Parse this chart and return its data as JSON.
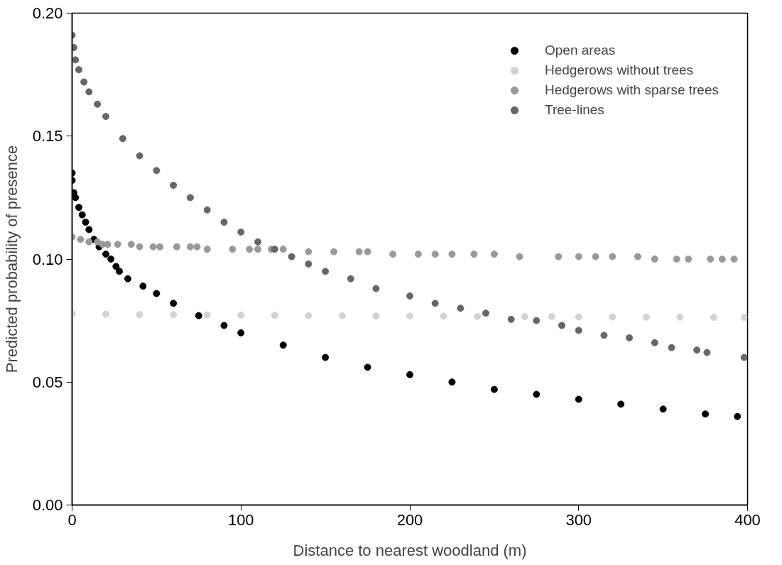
{
  "chart_data": {
    "type": "scatter",
    "xlabel": "Distance to nearest woodland (m)",
    "ylabel": "Predicted probability of presence",
    "xlim": [
      0,
      400
    ],
    "xticks": [
      0,
      100,
      200,
      300,
      400
    ],
    "ylim": [
      0,
      0.2
    ],
    "yticks": [
      {
        "value": 0,
        "label": "0.00"
      },
      {
        "value": 0.05,
        "label": "0.05"
      },
      {
        "value": 0.1,
        "label": "0.10"
      },
      {
        "value": 0.15,
        "label": "0.15"
      },
      {
        "value": 0.2,
        "label": "0.20"
      }
    ],
    "grid": false,
    "legend": "top right",
    "marker": "circle",
    "series": [
      {
        "name": "Open areas",
        "color": "#000000",
        "x": [
          0,
          0,
          1,
          2,
          4,
          6,
          8,
          10,
          13,
          16,
          20,
          23,
          26,
          28,
          33,
          42,
          50,
          60,
          75,
          90,
          100,
          125,
          150,
          175,
          200,
          225,
          250,
          275,
          300,
          325,
          350,
          375,
          394
        ],
        "values": [
          0.135,
          0.132,
          0.127,
          0.125,
          0.121,
          0.118,
          0.115,
          0.112,
          0.108,
          0.105,
          0.102,
          0.1,
          0.097,
          0.095,
          0.092,
          0.089,
          0.086,
          0.082,
          0.077,
          0.073,
          0.07,
          0.065,
          0.06,
          0.056,
          0.053,
          0.05,
          0.047,
          0.045,
          0.043,
          0.041,
          0.039,
          0.037,
          0.036
        ]
      },
      {
        "name": "Hedgerows without trees",
        "color": "#d3d3d3",
        "x": [
          0,
          20,
          40,
          60,
          80,
          100,
          120,
          140,
          160,
          180,
          200,
          220,
          240,
          268,
          284,
          300,
          320,
          340,
          360,
          380,
          398
        ],
        "values": [
          0.0778,
          0.0776,
          0.0775,
          0.0774,
          0.0773,
          0.0772,
          0.0771,
          0.077,
          0.077,
          0.0769,
          0.0768,
          0.0768,
          0.0767,
          0.0766,
          0.0766,
          0.0765,
          0.0765,
          0.0764,
          0.0764,
          0.0763,
          0.0763
        ]
      },
      {
        "name": "Hedgerows with sparse trees",
        "color": "#999999",
        "x": [
          0,
          5,
          10,
          15,
          18,
          21,
          27,
          35,
          40,
          48,
          52,
          62,
          70,
          74,
          80,
          95,
          105,
          110,
          118,
          125,
          140,
          155,
          170,
          175,
          190,
          205,
          215,
          225,
          238,
          250,
          265,
          288,
          300,
          310,
          320,
          335,
          345,
          358,
          365,
          378,
          385,
          392
        ],
        "values": [
          0.109,
          0.108,
          0.107,
          0.107,
          0.106,
          0.106,
          0.106,
          0.106,
          0.105,
          0.105,
          0.105,
          0.105,
          0.105,
          0.105,
          0.104,
          0.104,
          0.104,
          0.104,
          0.104,
          0.104,
          0.103,
          0.103,
          0.103,
          0.103,
          0.102,
          0.102,
          0.102,
          0.102,
          0.102,
          0.102,
          0.101,
          0.101,
          0.101,
          0.101,
          0.101,
          0.101,
          0.1,
          0.1,
          0.1,
          0.1,
          0.1,
          0.1
        ]
      },
      {
        "name": "Tree-lines",
        "color": "#666666",
        "x": [
          0,
          1,
          2,
          4,
          7,
          10,
          15,
          20,
          30,
          40,
          50,
          60,
          70,
          80,
          90,
          100,
          110,
          120,
          130,
          140,
          150,
          165,
          180,
          200,
          215,
          230,
          245,
          260,
          275,
          290,
          300,
          315,
          330,
          345,
          355,
          370,
          376,
          398
        ],
        "values": [
          0.191,
          0.186,
          0.181,
          0.177,
          0.172,
          0.168,
          0.163,
          0.158,
          0.149,
          0.142,
          0.136,
          0.13,
          0.125,
          0.12,
          0.115,
          0.111,
          0.107,
          0.104,
          0.101,
          0.098,
          0.095,
          0.092,
          0.088,
          0.085,
          0.082,
          0.08,
          0.078,
          0.0755,
          0.075,
          0.073,
          0.071,
          0.069,
          0.068,
          0.066,
          0.064,
          0.063,
          0.062,
          0.06
        ]
      }
    ]
  }
}
